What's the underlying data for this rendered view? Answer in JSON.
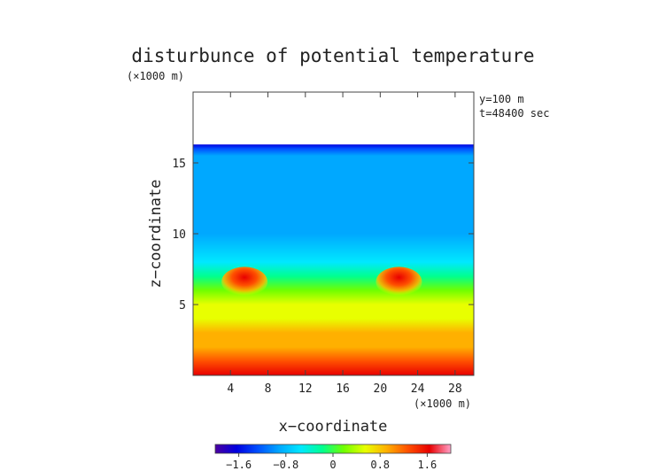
{
  "chart_data": {
    "type": "heatmap",
    "title": "disturbunce of potential temperature",
    "x_unit": "(×1000 m)",
    "z_unit": "(×1000 m)",
    "xlabel": "x−coordinate",
    "ylabel": "z−coordinate",
    "annotations": [
      "y=100 m",
      "t=48400 sec"
    ],
    "x_range": [
      0,
      30
    ],
    "z_range": [
      0,
      20
    ],
    "x_ticks": [
      4,
      8,
      12,
      16,
      20,
      24,
      28
    ],
    "z_ticks": [
      5,
      10,
      15
    ],
    "data_top_z": 16.3,
    "colorbar": {
      "range": [
        -2,
        2
      ],
      "ticks": [
        {
          "value": -1.6,
          "label": "−1.6"
        },
        {
          "value": -0.8,
          "label": "−0.8"
        },
        {
          "value": 0,
          "label": "0"
        },
        {
          "value": 0.8,
          "label": "0.8"
        },
        {
          "value": 1.6,
          "label": "1.6"
        }
      ],
      "colors": [
        "#4b00a0",
        "#0000e0",
        "#0050ff",
        "#00a8ff",
        "#00e8ff",
        "#00ff90",
        "#70ff00",
        "#e8ff00",
        "#ffb000",
        "#ff5000",
        "#e80000",
        "#ffa0c8"
      ]
    },
    "field_profile": {
      "z": [
        0,
        1,
        2,
        3,
        4,
        5,
        6,
        7,
        8,
        10,
        12,
        14,
        15.5,
        16.0,
        16.3
      ],
      "value": [
        1.5,
        1.25,
        1.0,
        0.85,
        0.65,
        0.45,
        0.2,
        -0.2,
        -0.55,
        -0.75,
        -0.85,
        -0.9,
        -1.05,
        -1.35,
        -1.8
      ]
    },
    "warm_blobs": [
      {
        "x": 5.5,
        "z": 6.6,
        "value": 1.2
      },
      {
        "x": 22,
        "z": 6.6,
        "value": 1.2
      }
    ]
  }
}
